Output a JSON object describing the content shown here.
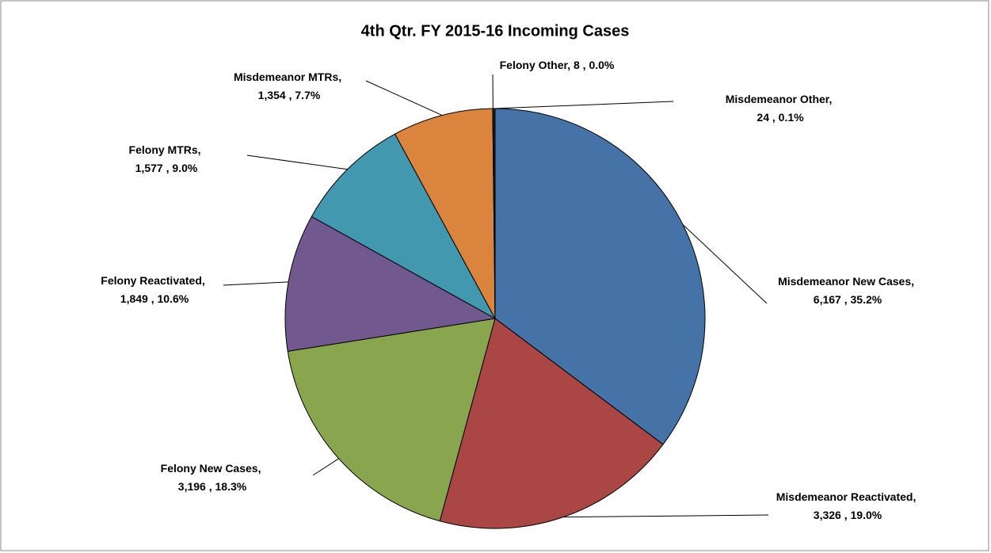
{
  "chart_data": {
    "type": "pie",
    "title": "4th Qtr. FY 2015-16 Incoming Cases",
    "categories": [
      "Misdemeanor New Cases",
      "Misdemeanor Reactivated",
      "Felony  New Cases",
      "Felony  Reactivated",
      "Felony  MTRs",
      "Misdemeanor MTRs",
      "Felony  Other",
      "Misdemeanor Other"
    ],
    "values": [
      6167,
      3326,
      3196,
      1849,
      1577,
      1354,
      8,
      24
    ],
    "value_labels": [
      "6,167",
      "3,326",
      "3,196",
      "1,849",
      "1,577",
      "1,354",
      "8",
      "24"
    ],
    "percent_labels": [
      "35.2%",
      "19.0%",
      "18.3%",
      "10.6%",
      "9.0%",
      "7.7%",
      "0.0%",
      "0.1%"
    ],
    "colors": [
      "#4572a7",
      "#aa4643",
      "#89a54e",
      "#71588f",
      "#4198af",
      "#db843d",
      "#1f3d6b",
      "#2a2a2a"
    ]
  }
}
